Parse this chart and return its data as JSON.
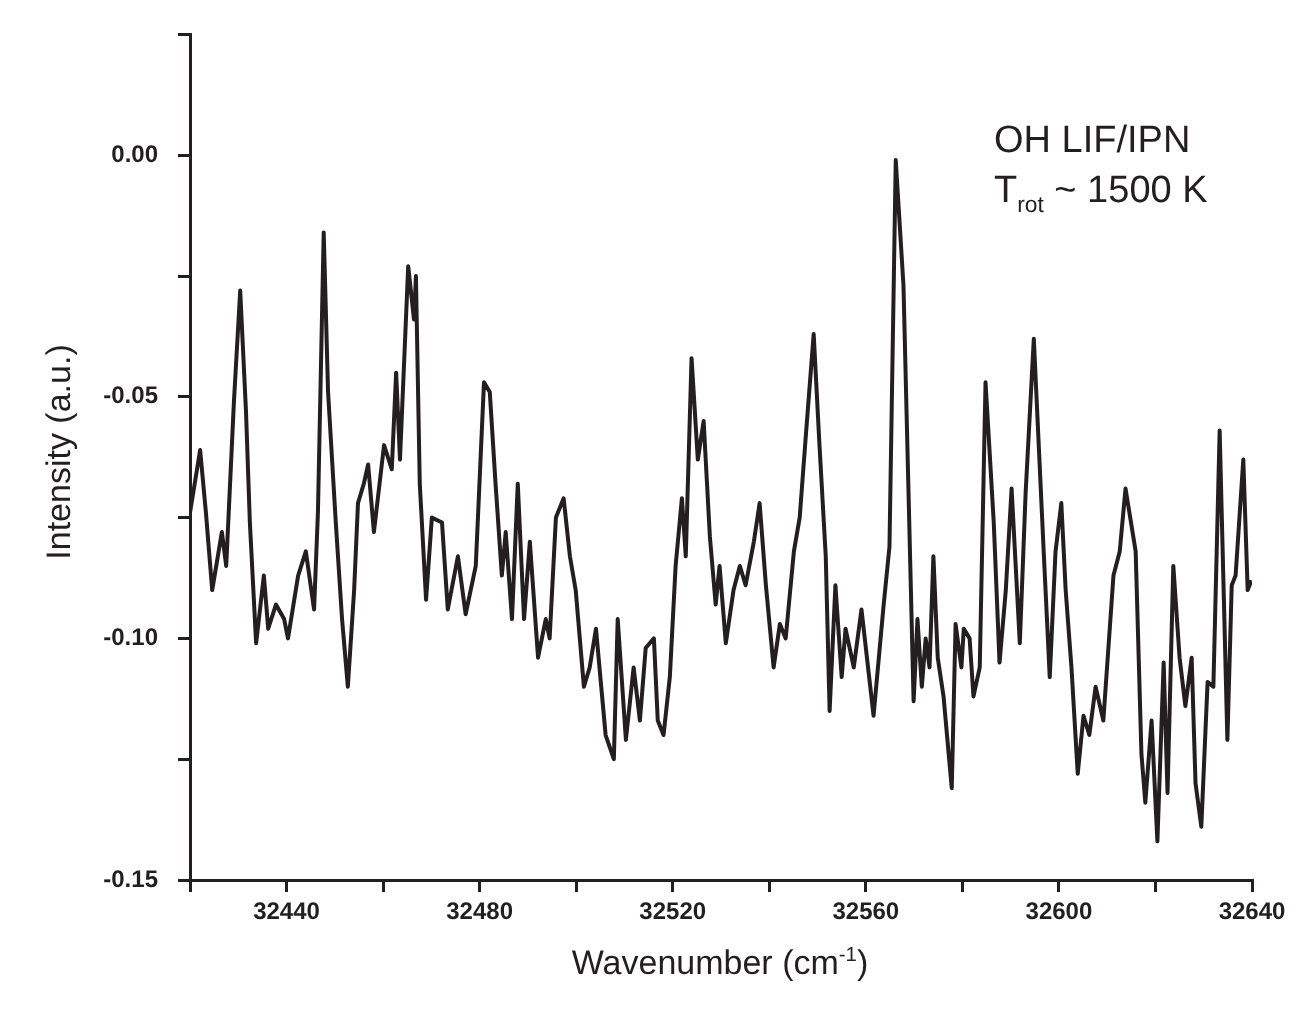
{
  "chart_data": {
    "type": "line",
    "xlabel": "Wavenumber (cm$^{-1}$)",
    "ylabel": "Intensity (a.u.)",
    "annotations": [
      "OH LIF/IPN",
      "T$_{rot}$ ~ 1500 K"
    ],
    "color": "#231f20",
    "xlim": [
      32420,
      32640
    ],
    "ylim": [
      -0.15,
      0.025
    ],
    "xticks": [
      {
        "value": 32420,
        "label": null
      },
      32440,
      {
        "value": 32460,
        "label": null
      },
      32480,
      {
        "value": 32500,
        "label": null
      },
      32520,
      {
        "value": 32540,
        "label": null
      },
      32560,
      {
        "value": 32580,
        "label": null
      },
      32600,
      {
        "value": 32620,
        "label": null
      },
      32640
    ],
    "yticks": [
      {
        "value": -0.15,
        "label": "-0.15"
      },
      {
        "value": -0.125,
        "label": null
      },
      {
        "value": -0.1,
        "label": "-0.10"
      },
      {
        "value": -0.075,
        "label": null
      },
      {
        "value": -0.05,
        "label": "-0.05"
      },
      {
        "value": -0.025,
        "label": null
      },
      {
        "value": 0,
        "label": "0.00"
      },
      {
        "value": 0.025,
        "label": null
      }
    ],
    "x": [
      32420.0,
      32422.1,
      32423.3,
      32424.6,
      32426.6,
      32427.5,
      32429.1,
      32430.4,
      32431.6,
      32432.4,
      32433.7,
      32435.3,
      32436.2,
      32437.8,
      32439.5,
      32440.3,
      32442.4,
      32444.0,
      32445.7,
      32446.5,
      32447.7,
      32448.6,
      32450.2,
      32451.5,
      32452.7,
      32454.0,
      32454.8,
      32456.0,
      32456.9,
      32458.1,
      32460.2,
      32461.8,
      32462.7,
      32463.5,
      32465.2,
      32466.4,
      32466.8,
      32467.6,
      32468.9,
      32470.1,
      32472.2,
      32473.4,
      32475.5,
      32477.1,
      32479.2,
      32480.9,
      32482.1,
      32483.3,
      32484.6,
      32485.4,
      32486.7,
      32487.9,
      32489.2,
      32490.4,
      32492.1,
      32493.7,
      32494.5,
      32495.8,
      32497.4,
      32498.7,
      32499.9,
      32501.6,
      32502.8,
      32504.1,
      32506.1,
      32507.8,
      32508.6,
      32510.3,
      32511.9,
      32513.2,
      32514.4,
      32516.1,
      32516.9,
      32518.1,
      32519.4,
      32520.6,
      32521.9,
      32522.7,
      32523.9,
      32525.2,
      32526.4,
      32527.7,
      32528.9,
      32529.7,
      32531.0,
      32532.6,
      32533.9,
      32535.1,
      32536.8,
      32538.0,
      32539.3,
      32540.9,
      32542.2,
      32543.4,
      32545.1,
      32546.3,
      32547.5,
      32549.2,
      32550.4,
      32551.7,
      32552.5,
      32553.7,
      32555.0,
      32555.8,
      32557.5,
      32559.1,
      32561.6,
      32563.7,
      32564.9,
      32566.2,
      32567.8,
      32569.9,
      32570.7,
      32571.6,
      32572.4,
      32573.2,
      32574.0,
      32574.9,
      32576.1,
      32577.8,
      32578.6,
      32579.8,
      32580.3,
      32581.5,
      32582.3,
      32583.6,
      32584.8,
      32586.5,
      32587.7,
      32589.0,
      32590.2,
      32591.9,
      32593.1,
      32594.8,
      32596.8,
      32598.1,
      32599.3,
      32600.5,
      32601.4,
      32602.6,
      32603.9,
      32605.1,
      32606.3,
      32607.6,
      32609.2,
      32611.3,
      32612.6,
      32613.8,
      32615.9,
      32617.1,
      32617.9,
      32619.2,
      32620.4,
      32621.7,
      32622.5,
      32623.7,
      32625.0,
      32626.2,
      32627.5,
      32628.3,
      32629.5,
      32630.8,
      32632.0,
      32633.3,
      32634.9,
      32635.8,
      32636.6,
      32638.2,
      32639.1,
      32639.9
    ],
    "values": [
      -0.074,
      -0.061,
      -0.074,
      -0.09,
      -0.078,
      -0.085,
      -0.051,
      -0.028,
      -0.053,
      -0.076,
      -0.101,
      -0.087,
      -0.098,
      -0.093,
      -0.096,
      -0.1,
      -0.087,
      -0.082,
      -0.094,
      -0.074,
      -0.016,
      -0.049,
      -0.076,
      -0.096,
      -0.11,
      -0.09,
      -0.072,
      -0.068,
      -0.064,
      -0.078,
      -0.06,
      -0.065,
      -0.045,
      -0.063,
      -0.023,
      -0.034,
      -0.025,
      -0.068,
      -0.092,
      -0.075,
      -0.076,
      -0.094,
      -0.083,
      -0.095,
      -0.085,
      -0.047,
      -0.049,
      -0.068,
      -0.087,
      -0.078,
      -0.096,
      -0.068,
      -0.096,
      -0.08,
      -0.104,
      -0.096,
      -0.1,
      -0.075,
      -0.071,
      -0.083,
      -0.09,
      -0.11,
      -0.106,
      -0.098,
      -0.12,
      -0.125,
      -0.096,
      -0.121,
      -0.106,
      -0.117,
      -0.102,
      -0.1,
      -0.117,
      -0.12,
      -0.108,
      -0.085,
      -0.071,
      -0.083,
      -0.042,
      -0.063,
      -0.055,
      -0.079,
      -0.093,
      -0.085,
      -0.101,
      -0.09,
      -0.085,
      -0.089,
      -0.08,
      -0.072,
      -0.089,
      -0.106,
      -0.097,
      -0.1,
      -0.082,
      -0.075,
      -0.059,
      -0.037,
      -0.06,
      -0.083,
      -0.115,
      -0.089,
      -0.108,
      -0.098,
      -0.106,
      -0.094,
      -0.116,
      -0.093,
      -0.081,
      -0.001,
      -0.027,
      -0.113,
      -0.096,
      -0.11,
      -0.1,
      -0.106,
      -0.083,
      -0.104,
      -0.112,
      -0.131,
      -0.097,
      -0.106,
      -0.098,
      -0.1,
      -0.112,
      -0.106,
      -0.047,
      -0.076,
      -0.105,
      -0.09,
      -0.069,
      -0.101,
      -0.07,
      -0.038,
      -0.081,
      -0.108,
      -0.082,
      -0.072,
      -0.09,
      -0.106,
      -0.128,
      -0.116,
      -0.12,
      -0.11,
      -0.117,
      -0.087,
      -0.082,
      -0.069,
      -0.082,
      -0.124,
      -0.134,
      -0.117,
      -0.142,
      -0.105,
      -0.132,
      -0.085,
      -0.104,
      -0.114,
      -0.104,
      -0.13,
      -0.139,
      -0.109,
      -0.11,
      -0.057,
      -0.121,
      -0.089,
      -0.087,
      -0.063,
      -0.09,
      -0.088
    ]
  }
}
